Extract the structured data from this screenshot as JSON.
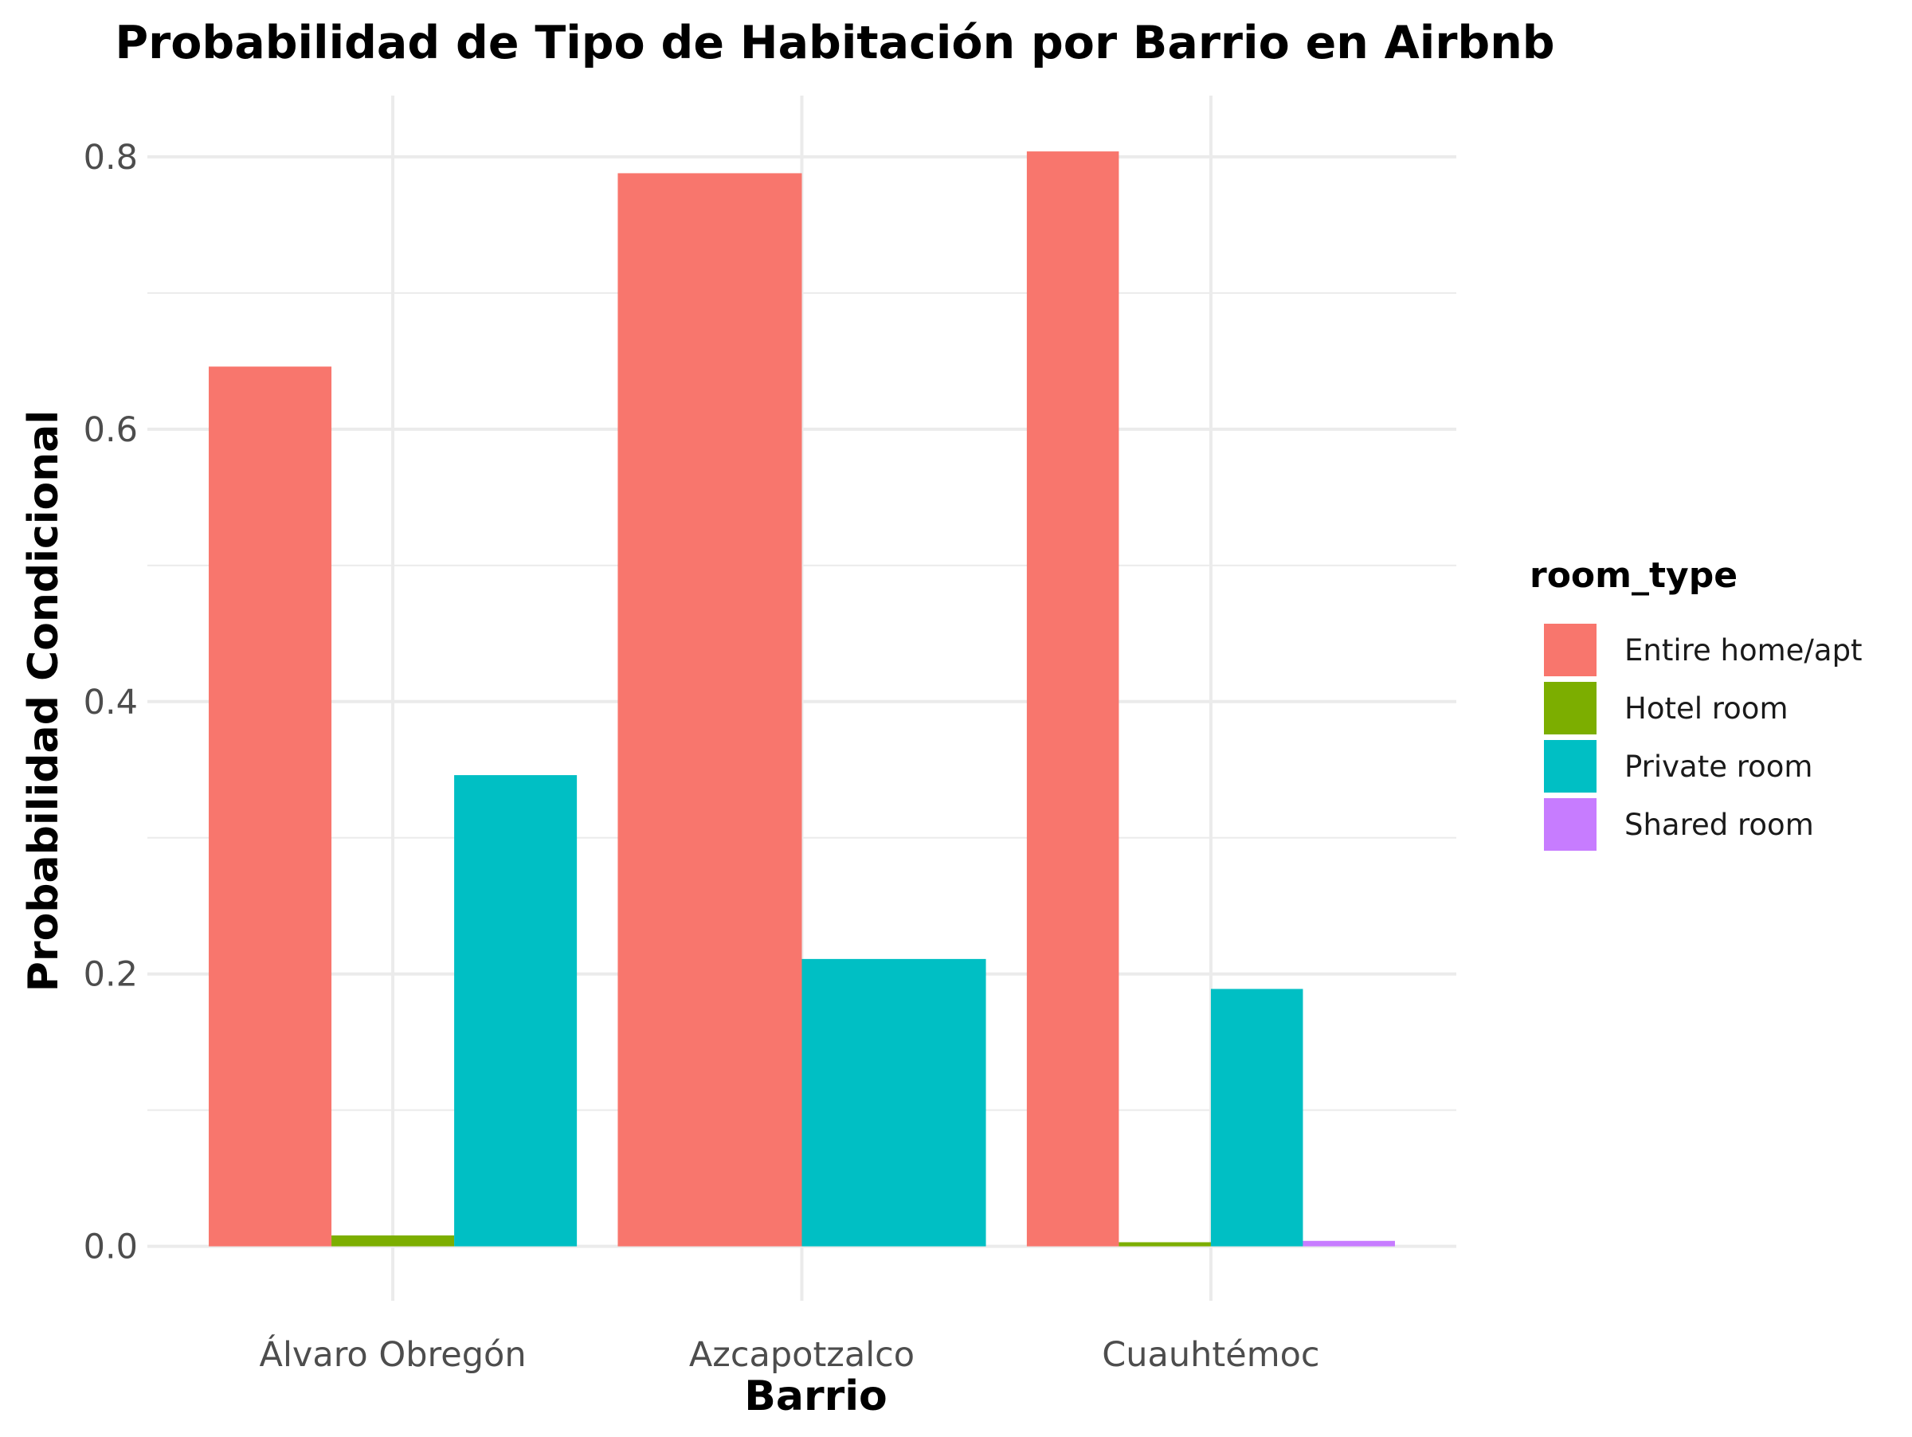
{
  "chart_data": {
    "type": "bar",
    "title": "Probabilidad de Tipo de Habitación por Barrio en Airbnb",
    "xlabel": "Barrio",
    "ylabel": "Probabilidad Condicional",
    "categories": [
      "Álvaro Obregón",
      "Azcapotzalco",
      "Cuauhtémoc"
    ],
    "ylim": [
      -0.04,
      0.845
    ],
    "yticks": [
      0.0,
      0.2,
      0.4,
      0.6,
      0.8
    ],
    "ytick_labels": [
      "0.0",
      "0.2",
      "0.4",
      "0.6",
      "0.8"
    ],
    "grid": true,
    "legend_position": "right",
    "legend_title": "room_type",
    "series": [
      {
        "name": "Entire home/apt",
        "color": "#F8766D",
        "values": [
          0.646,
          0.788,
          0.804
        ]
      },
      {
        "name": "Hotel room",
        "color": "#7CAE00",
        "values": [
          0.008,
          null,
          0.003
        ]
      },
      {
        "name": "Private room",
        "color": "#00BFC4",
        "values": [
          0.346,
          0.211,
          0.189
        ]
      },
      {
        "name": "Shared room",
        "color": "#C77CFF",
        "values": [
          null,
          null,
          0.004
        ]
      }
    ]
  }
}
